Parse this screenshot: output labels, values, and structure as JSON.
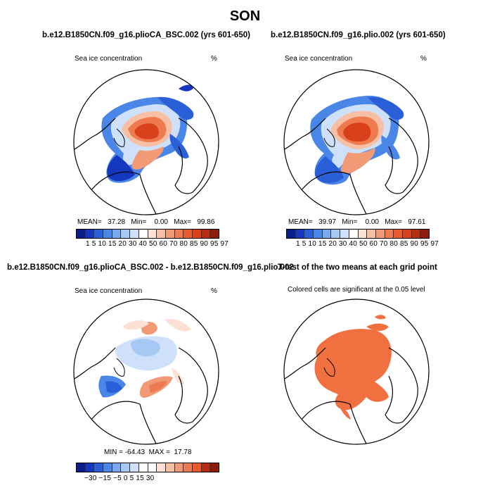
{
  "title": "SON",
  "panels": {
    "top_left": {
      "title": "b.e12.B1850CN.f09_g16.plioCA_BSC.002 (yrs 601-650)",
      "left_label": "Sea ice concentration",
      "right_label": "%",
      "stats": "MEAN=   37.28   Min=    0.00   Max=   99.86",
      "colorbar_labels": "1  5  10 15 20 30 40 50 60 70 80 85 90 95 97"
    },
    "top_right": {
      "title": "b.e12.B1850CN.f09_g16.plio.002 (yrs 601-650)",
      "left_label": "Sea ice concentration",
      "right_label": "%",
      "stats": "MEAN=   39.97   Min=    0.00   Max=   97.61",
      "colorbar_labels": "1  5  10 15 20 30 40 50 60 70 80 85 90 95 97"
    },
    "bottom_left": {
      "title": "b.e12.B1850CN.f09_g16.plioCA_BSC.002 - b.e12.B1850CN.f09_g16.plio.002",
      "left_label": "Sea ice concentration",
      "right_label": "%",
      "stats": "MIN = -64.43  MAX =  17.78",
      "colorbar_labels": "−30  −15   −5    0     5    15   30"
    },
    "bottom_right": {
      "title": "T-test of the two means at each grid point",
      "subtitle": "Colored cells are significant at the 0.05 level"
    }
  },
  "colors": {
    "ice_scale": [
      "#0a1d8c",
      "#1537c0",
      "#2a5fd8",
      "#4a86e8",
      "#79a9f0",
      "#a6c8f5",
      "#cfe0fa",
      "#ffffff",
      "#fbe0d3",
      "#f7bfa4",
      "#f29a75",
      "#ee7a4f",
      "#e95a2f",
      "#d8411c",
      "#b52d12",
      "#8e1c0a"
    ],
    "diff_scale": [
      "#0a1d8c",
      "#1537c0",
      "#2a5fd8",
      "#4a86e8",
      "#79a9f0",
      "#a6c8f5",
      "#cfe0fa",
      "#ffffff",
      "#ffffff",
      "#fbe0d3",
      "#f7bfa4",
      "#f29a75",
      "#ee7a4f",
      "#e95a2f",
      "#b52d12",
      "#8e1c0a"
    ],
    "significant": "#f07040"
  }
}
